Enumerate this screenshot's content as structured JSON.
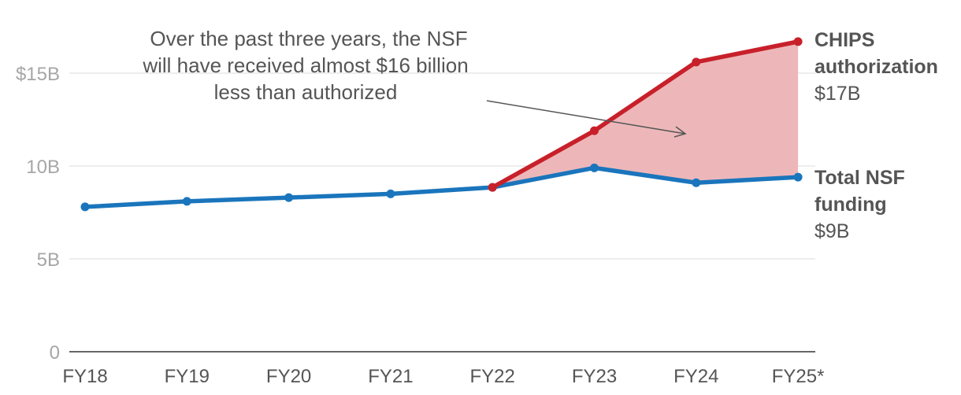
{
  "chart_data": {
    "type": "line",
    "categories": [
      "FY18",
      "FY19",
      "FY20",
      "FY21",
      "FY22",
      "FY23",
      "FY24",
      "FY25*"
    ],
    "ylim": [
      0,
      17.5
    ],
    "yticks": [
      {
        "value": 0,
        "label": "0"
      },
      {
        "value": 5,
        "label": "5B"
      },
      {
        "value": 10,
        "label": "10B"
      },
      {
        "value": 15,
        "label": "$15B"
      }
    ],
    "grid": true,
    "series": [
      {
        "name": "Total NSF funding",
        "color": "#1a75bc",
        "values": [
          7.8,
          8.1,
          8.3,
          8.5,
          8.85,
          9.9,
          9.1,
          9.4
        ],
        "label_lines": [
          "Total NSF",
          "funding"
        ],
        "end_value_label": "$9B"
      },
      {
        "name": "CHIPS authorization",
        "color": "#c8202a",
        "values": [
          null,
          null,
          null,
          null,
          8.85,
          11.9,
          15.6,
          16.7
        ],
        "label_lines": [
          "CHIPS",
          "authorization"
        ],
        "end_value_label": "$17B"
      }
    ],
    "gap_fill_color": "#edb7b9",
    "annotation": {
      "lines": [
        "Over the past three years, the NSF",
        "will have received almost $16 billion",
        "less than authorized"
      ]
    }
  }
}
